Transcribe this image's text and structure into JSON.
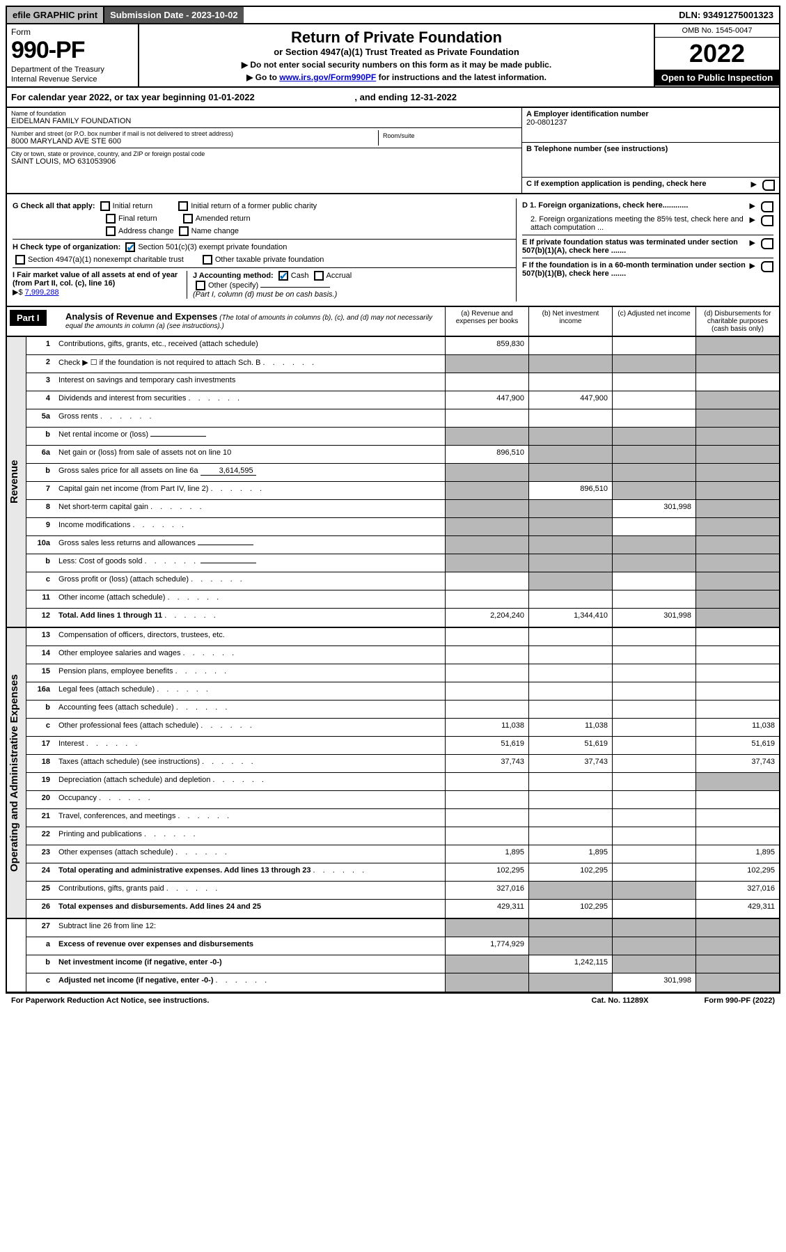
{
  "top_bar": {
    "efile_btn": "efile GRAPHIC print",
    "submission_label": "Submission Date - 2023-10-02",
    "dln": "DLN: 93491275001323"
  },
  "header": {
    "form_label": "Form",
    "form_number": "990-PF",
    "dept_line1": "Department of the Treasury",
    "dept_line2": "Internal Revenue Service",
    "title": "Return of Private Foundation",
    "subtitle": "or Section 4947(a)(1) Trust Treated as Private Foundation",
    "instruction1": "▶ Do not enter social security numbers on this form as it may be made public.",
    "instruction2_pre": "▶ Go to ",
    "instruction2_link": "www.irs.gov/Form990PF",
    "instruction2_post": " for instructions and the latest information.",
    "omb": "OMB No. 1545-0047",
    "year": "2022",
    "open_public": "Open to Public Inspection"
  },
  "cal_year": {
    "text": "For calendar year 2022, or tax year beginning 01-01-2022",
    "ending": ", and ending 12-31-2022"
  },
  "info": {
    "name_label": "Name of foundation",
    "name_value": "EIDELMAN FAMILY FOUNDATION",
    "address_label": "Number and street (or P.O. box number if mail is not delivered to street address)",
    "address_value": "8000 MARYLAND AVE STE 600",
    "room_label": "Room/suite",
    "city_label": "City or town, state or province, country, and ZIP or foreign postal code",
    "city_value": "SAINT LOUIS, MO  631053906",
    "ein_label": "A Employer identification number",
    "ein_value": "20-0801237",
    "phone_label": "B Telephone number (see instructions)",
    "pending_label": "C If exemption application is pending, check here"
  },
  "checks": {
    "g_label": "G Check all that apply:",
    "g_opts": [
      "Initial return",
      "Initial return of a former public charity",
      "Final return",
      "Amended return",
      "Address change",
      "Name change"
    ],
    "h_label": "H Check type of organization:",
    "h_opt1": "Section 501(c)(3) exempt private foundation",
    "h_opt2": "Section 4947(a)(1) nonexempt charitable trust",
    "h_opt3": "Other taxable private foundation",
    "i_label": "I Fair market value of all assets at end of year (from Part II, col. (c), line 16)",
    "i_prefix": "▶$",
    "i_value": "7,999,288",
    "j_label": "J Accounting method:",
    "j_cash": "Cash",
    "j_accrual": "Accrual",
    "j_other": "Other (specify)",
    "j_note": "(Part I, column (d) must be on cash basis.)",
    "d1": "D 1. Foreign organizations, check here............",
    "d2": "2. Foreign organizations meeting the 85% test, check here and attach computation ...",
    "e": "E  If private foundation status was terminated under section 507(b)(1)(A), check here .......",
    "f": "F  If the foundation is in a 60-month termination under section 507(b)(1)(B), check here ......."
  },
  "part1": {
    "label": "Part I",
    "title": "Analysis of Revenue and Expenses",
    "subtitle": "(The total of amounts in columns (b), (c), and (d) may not necessarily equal the amounts in column (a) (see instructions).)",
    "col_a": "(a) Revenue and expenses per books",
    "col_b": "(b) Net investment income",
    "col_c": "(c) Adjusted net income",
    "col_d": "(d) Disbursements for charitable purposes (cash basis only)"
  },
  "sections": {
    "revenue": "Revenue",
    "expenses": "Operating and Administrative Expenses"
  },
  "rows": [
    {
      "num": "1",
      "desc": "Contributions, gifts, grants, etc., received (attach schedule)",
      "a": "859,830",
      "b": "",
      "c": "",
      "d": "",
      "shade": [
        "d"
      ]
    },
    {
      "num": "2",
      "desc": "Check ▶ ☐ if the foundation is not required to attach Sch. B",
      "a": "",
      "b": "",
      "c": "",
      "d": "",
      "shade": [
        "a",
        "b",
        "c",
        "d"
      ],
      "dots": true
    },
    {
      "num": "3",
      "desc": "Interest on savings and temporary cash investments",
      "a": "",
      "b": "",
      "c": "",
      "d": ""
    },
    {
      "num": "4",
      "desc": "Dividends and interest from securities",
      "a": "447,900",
      "b": "447,900",
      "c": "",
      "d": "",
      "dots": true,
      "shade": [
        "d"
      ]
    },
    {
      "num": "5a",
      "desc": "Gross rents",
      "a": "",
      "b": "",
      "c": "",
      "d": "",
      "dots": true,
      "shade": [
        "d"
      ]
    },
    {
      "num": "b",
      "desc": "Net rental income or (loss)",
      "a": "",
      "b": "",
      "c": "",
      "d": "",
      "shade": [
        "a",
        "b",
        "c",
        "d"
      ],
      "inline": true
    },
    {
      "num": "6a",
      "desc": "Net gain or (loss) from sale of assets not on line 10",
      "a": "896,510",
      "b": "",
      "c": "",
      "d": "",
      "shade": [
        "b",
        "c",
        "d"
      ]
    },
    {
      "num": "b",
      "desc": "Gross sales price for all assets on line 6a",
      "a": "",
      "b": "",
      "c": "",
      "d": "",
      "shade": [
        "a",
        "b",
        "c",
        "d"
      ],
      "inline": true,
      "inline_val": "3,614,595"
    },
    {
      "num": "7",
      "desc": "Capital gain net income (from Part IV, line 2)",
      "a": "",
      "b": "896,510",
      "c": "",
      "d": "",
      "dots": true,
      "shade": [
        "a",
        "c",
        "d"
      ]
    },
    {
      "num": "8",
      "desc": "Net short-term capital gain",
      "a": "",
      "b": "",
      "c": "301,998",
      "d": "",
      "dots": true,
      "shade": [
        "a",
        "b",
        "d"
      ]
    },
    {
      "num": "9",
      "desc": "Income modifications",
      "a": "",
      "b": "",
      "c": "",
      "d": "",
      "dots": true,
      "shade": [
        "a",
        "b",
        "d"
      ]
    },
    {
      "num": "10a",
      "desc": "Gross sales less returns and allowances",
      "a": "",
      "b": "",
      "c": "",
      "d": "",
      "shade": [
        "a",
        "b",
        "c",
        "d"
      ],
      "inline": true
    },
    {
      "num": "b",
      "desc": "Less: Cost of goods sold",
      "a": "",
      "b": "",
      "c": "",
      "d": "",
      "dots": true,
      "shade": [
        "a",
        "b",
        "c",
        "d"
      ],
      "inline": true
    },
    {
      "num": "c",
      "desc": "Gross profit or (loss) (attach schedule)",
      "a": "",
      "b": "",
      "c": "",
      "d": "",
      "dots": true,
      "shade": [
        "b",
        "d"
      ]
    },
    {
      "num": "11",
      "desc": "Other income (attach schedule)",
      "a": "",
      "b": "",
      "c": "",
      "d": "",
      "dots": true,
      "shade": [
        "d"
      ]
    },
    {
      "num": "12",
      "desc": "Total. Add lines 1 through 11",
      "a": "2,204,240",
      "b": "1,344,410",
      "c": "301,998",
      "d": "",
      "bold": true,
      "dots": true,
      "shade": [
        "d"
      ]
    }
  ],
  "exp_rows": [
    {
      "num": "13",
      "desc": "Compensation of officers, directors, trustees, etc.",
      "a": "",
      "b": "",
      "c": "",
      "d": ""
    },
    {
      "num": "14",
      "desc": "Other employee salaries and wages",
      "a": "",
      "b": "",
      "c": "",
      "d": "",
      "dots": true
    },
    {
      "num": "15",
      "desc": "Pension plans, employee benefits",
      "a": "",
      "b": "",
      "c": "",
      "d": "",
      "dots": true
    },
    {
      "num": "16a",
      "desc": "Legal fees (attach schedule)",
      "a": "",
      "b": "",
      "c": "",
      "d": "",
      "dots": true
    },
    {
      "num": "b",
      "desc": "Accounting fees (attach schedule)",
      "a": "",
      "b": "",
      "c": "",
      "d": "",
      "dots": true
    },
    {
      "num": "c",
      "desc": "Other professional fees (attach schedule)",
      "a": "11,038",
      "b": "11,038",
      "c": "",
      "d": "11,038",
      "dots": true
    },
    {
      "num": "17",
      "desc": "Interest",
      "a": "51,619",
      "b": "51,619",
      "c": "",
      "d": "51,619",
      "dots": true
    },
    {
      "num": "18",
      "desc": "Taxes (attach schedule) (see instructions)",
      "a": "37,743",
      "b": "37,743",
      "c": "",
      "d": "37,743",
      "dots": true
    },
    {
      "num": "19",
      "desc": "Depreciation (attach schedule) and depletion",
      "a": "",
      "b": "",
      "c": "",
      "d": "",
      "dots": true,
      "shade": [
        "d"
      ]
    },
    {
      "num": "20",
      "desc": "Occupancy",
      "a": "",
      "b": "",
      "c": "",
      "d": "",
      "dots": true
    },
    {
      "num": "21",
      "desc": "Travel, conferences, and meetings",
      "a": "",
      "b": "",
      "c": "",
      "d": "",
      "dots": true
    },
    {
      "num": "22",
      "desc": "Printing and publications",
      "a": "",
      "b": "",
      "c": "",
      "d": "",
      "dots": true
    },
    {
      "num": "23",
      "desc": "Other expenses (attach schedule)",
      "a": "1,895",
      "b": "1,895",
      "c": "",
      "d": "1,895",
      "dots": true
    },
    {
      "num": "24",
      "desc": "Total operating and administrative expenses. Add lines 13 through 23",
      "a": "102,295",
      "b": "102,295",
      "c": "",
      "d": "102,295",
      "bold": true,
      "dots": true
    },
    {
      "num": "25",
      "desc": "Contributions, gifts, grants paid",
      "a": "327,016",
      "b": "",
      "c": "",
      "d": "327,016",
      "dots": true,
      "shade": [
        "b",
        "c"
      ]
    },
    {
      "num": "26",
      "desc": "Total expenses and disbursements. Add lines 24 and 25",
      "a": "429,311",
      "b": "102,295",
      "c": "",
      "d": "429,311",
      "bold": true
    }
  ],
  "bottom_rows": [
    {
      "num": "27",
      "desc": "Subtract line 26 from line 12:",
      "a": "",
      "b": "",
      "c": "",
      "d": "",
      "shade": [
        "a",
        "b",
        "c",
        "d"
      ]
    },
    {
      "num": "a",
      "desc": "Excess of revenue over expenses and disbursements",
      "a": "1,774,929",
      "b": "",
      "c": "",
      "d": "",
      "bold": true,
      "shade": [
        "b",
        "c",
        "d"
      ]
    },
    {
      "num": "b",
      "desc": "Net investment income (if negative, enter -0-)",
      "a": "",
      "b": "1,242,115",
      "c": "",
      "d": "",
      "bold": true,
      "shade": [
        "a",
        "c",
        "d"
      ]
    },
    {
      "num": "c",
      "desc": "Adjusted net income (if negative, enter -0-)",
      "a": "",
      "b": "",
      "c": "301,998",
      "d": "",
      "bold": true,
      "dots": true,
      "shade": [
        "a",
        "b",
        "d"
      ]
    }
  ],
  "footer": {
    "left": "For Paperwork Reduction Act Notice, see instructions.",
    "center": "Cat. No. 11289X",
    "right": "Form 990-PF (2022)"
  }
}
